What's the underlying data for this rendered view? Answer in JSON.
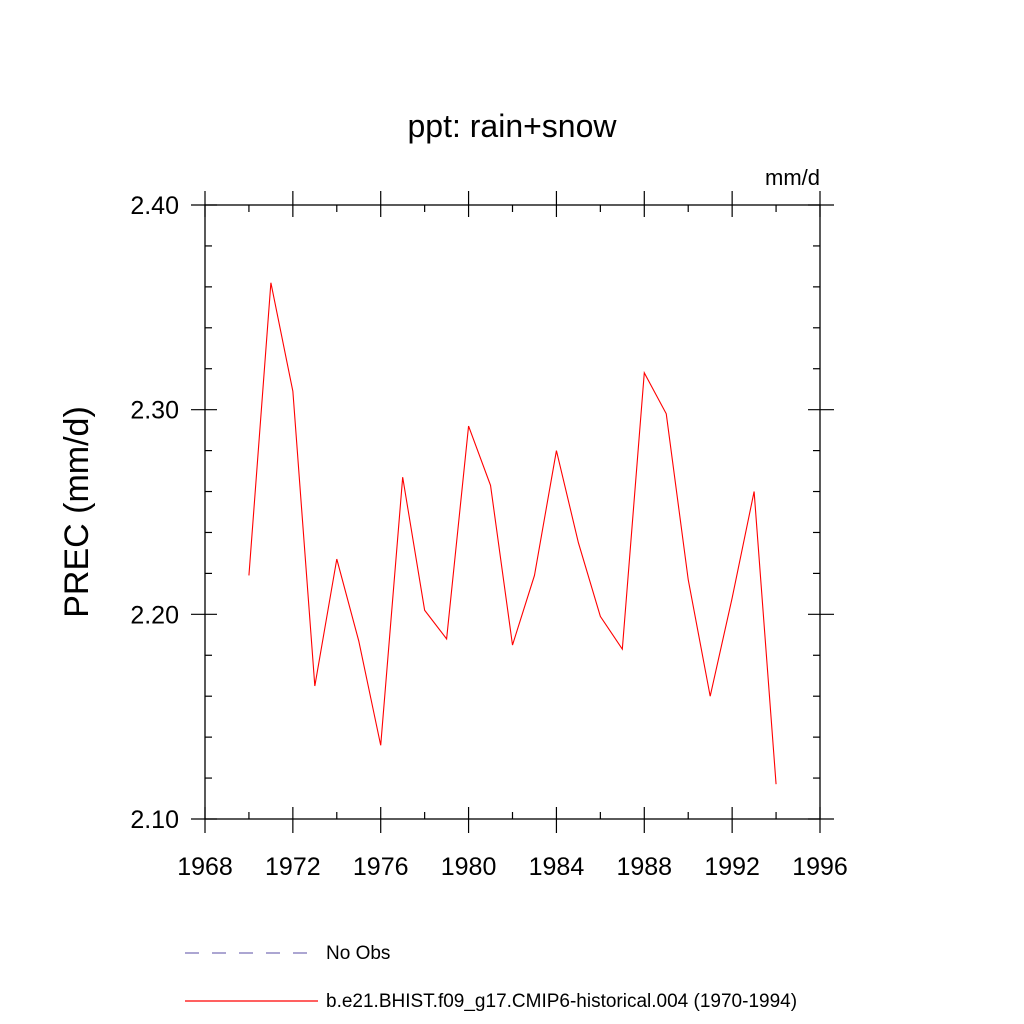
{
  "chart_data": {
    "type": "line",
    "title": "ppt: rain+snow",
    "units_label": "mm/d",
    "xlabel": "",
    "ylabel": "PREC  (mm/d)",
    "xlim": [
      1968,
      1996
    ],
    "ylim": [
      2.1,
      2.4
    ],
    "x_major_ticks": [
      1968,
      1972,
      1976,
      1980,
      1984,
      1988,
      1992,
      1996
    ],
    "x_tick_labels": [
      "1968",
      "1972",
      "1976",
      "1980",
      "1984",
      "1988",
      "1992",
      "1996"
    ],
    "x_minor_step": 2,
    "y_major_ticks": [
      2.1,
      2.2,
      2.3,
      2.4
    ],
    "y_tick_labels": [
      "2.10",
      "2.20",
      "2.30",
      "2.40"
    ],
    "y_minor_step": 0.02,
    "grid": false,
    "legend_position": "bottom",
    "series": [
      {
        "name": "b.e21.BHIST.f09_g17.CMIP6-historical.004 (1970-1994)",
        "color": "#ff0000",
        "style": "solid",
        "x": [
          1970,
          1971,
          1972,
          1973,
          1974,
          1975,
          1976,
          1977,
          1978,
          1979,
          1980,
          1981,
          1982,
          1983,
          1984,
          1985,
          1986,
          1987,
          1988,
          1989,
          1990,
          1991,
          1992,
          1993,
          1994
        ],
        "values": [
          2.219,
          2.362,
          2.309,
          2.165,
          2.227,
          2.187,
          2.136,
          2.267,
          2.202,
          2.188,
          2.292,
          2.263,
          2.185,
          2.219,
          2.28,
          2.235,
          2.199,
          2.183,
          2.318,
          2.298,
          2.217,
          2.16,
          2.208,
          2.26,
          2.117
        ]
      }
    ],
    "legend": [
      {
        "label": "No Obs",
        "color": "#7a72b8",
        "style": "dashed"
      },
      {
        "label": "b.e21.BHIST.f09_g17.CMIP6-historical.004 (1970-1994)",
        "color": "#ff0000",
        "style": "solid"
      }
    ]
  }
}
